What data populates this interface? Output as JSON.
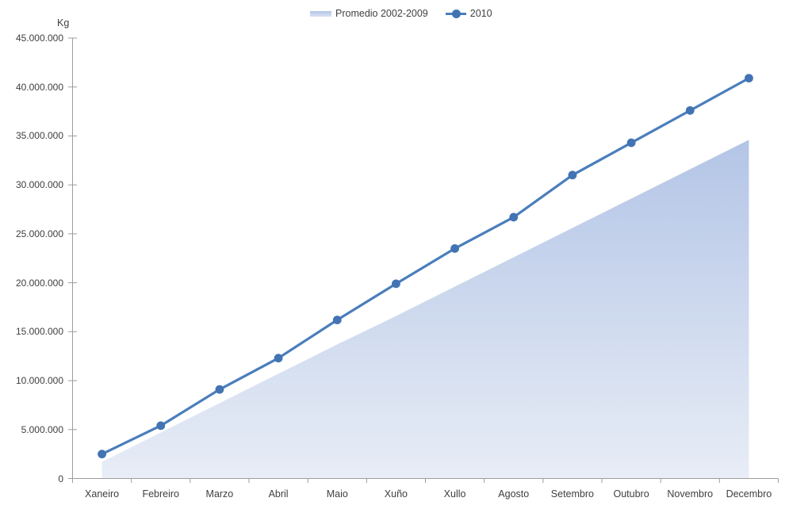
{
  "chart_data": {
    "type": "line",
    "subtype": "area series + line series with circle markers",
    "title": "",
    "xlabel": "",
    "ylabel": "Kg",
    "ylim": [
      0,
      45000000
    ],
    "y_tick_interval": 5000000,
    "grid": false,
    "legend_position": "top-center",
    "categories": [
      "Xaneiro",
      "Febreiro",
      "Marzo",
      "Abril",
      "Maio",
      "Xuño",
      "Xullo",
      "Agosto",
      "Setembro",
      "Outubro",
      "Novembro",
      "Decembro"
    ],
    "series": [
      {
        "name": "Promedio 2002-2009",
        "type": "area",
        "color": "#b9c9e8",
        "values": [
          1700000,
          4700000,
          7700000,
          10700000,
          13700000,
          16600000,
          19600000,
          22600000,
          25600000,
          28600000,
          31600000,
          34600000
        ]
      },
      {
        "name": "2010",
        "type": "line-markers",
        "color": "#4a7ebb",
        "values": [
          2500000,
          5400000,
          9100000,
          12300000,
          16200000,
          19900000,
          23500000,
          26700000,
          31000000,
          34300000,
          37600000,
          40900000
        ]
      }
    ],
    "y_ticks": [
      {
        "value": 0,
        "label": "0"
      },
      {
        "value": 5000000,
        "label": "5.000.000"
      },
      {
        "value": 10000000,
        "label": "10.000.000"
      },
      {
        "value": 15000000,
        "label": "15.000.000"
      },
      {
        "value": 20000000,
        "label": "20.000.000"
      },
      {
        "value": 25000000,
        "label": "25.000.000"
      },
      {
        "value": 30000000,
        "label": "30.000.000"
      },
      {
        "value": 35000000,
        "label": "35.000.000"
      },
      {
        "value": 40000000,
        "label": "40.000.000"
      },
      {
        "value": 45000000,
        "label": "45.000.000"
      }
    ],
    "legend": [
      {
        "label": "Promedio 2002-2009"
      },
      {
        "label": "2010"
      }
    ],
    "colors": {
      "area_gradient_top": "#b3c5e6",
      "area_gradient_bottom": "#e8edf6",
      "line": "#4a7ebb",
      "marker": "#4273b3",
      "axis": "#9d9d9d",
      "text": "#3f3f3f",
      "background": "#ffffff"
    }
  }
}
